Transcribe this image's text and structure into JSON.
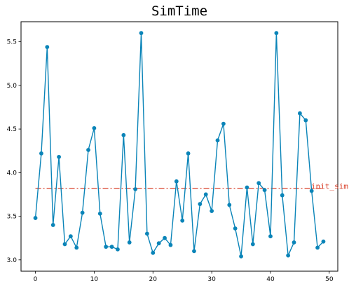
{
  "chart_data": {
    "type": "line",
    "title": "SimTime",
    "xlabel": "",
    "ylabel": "",
    "xlim": [
      -2.45,
      51.45
    ],
    "ylim": [
      2.87,
      5.73
    ],
    "x_ticks": [
      "0",
      "10",
      "20",
      "30",
      "40",
      "50"
    ],
    "y_ticks": [
      "3.0",
      "3.5",
      "4.0",
      "4.5",
      "5.0",
      "5.5"
    ],
    "grid": false,
    "series": [
      {
        "color": "#0a84b8",
        "x": [
          0,
          1,
          2,
          3,
          4,
          5,
          6,
          7,
          8,
          9,
          10,
          11,
          12,
          13,
          14,
          15,
          16,
          17,
          18,
          19,
          20,
          21,
          22,
          23,
          24,
          25,
          26,
          27,
          28,
          29,
          30,
          31,
          32,
          33,
          34,
          35,
          36,
          37,
          38,
          39,
          40,
          41,
          42,
          43,
          44,
          45,
          46,
          47,
          48,
          49
        ],
        "values": [
          3.48,
          4.22,
          5.44,
          3.4,
          4.18,
          3.18,
          3.27,
          3.14,
          3.54,
          4.26,
          4.51,
          3.53,
          3.15,
          3.15,
          3.12,
          4.43,
          3.2,
          3.81,
          5.6,
          3.3,
          3.08,
          3.19,
          3.25,
          3.17,
          3.9,
          3.45,
          4.22,
          3.1,
          3.64,
          3.75,
          3.56,
          4.37,
          4.56,
          3.63,
          3.36,
          3.04,
          3.83,
          3.18,
          3.88,
          3.8,
          3.27,
          5.6,
          3.74,
          3.05,
          3.2,
          4.68,
          4.6,
          3.79,
          3.14,
          3.21
        ]
      }
    ],
    "reference_line": {
      "label": "init_sim",
      "value": 3.82,
      "color": "#d9412b",
      "style": "dash-dot"
    }
  }
}
